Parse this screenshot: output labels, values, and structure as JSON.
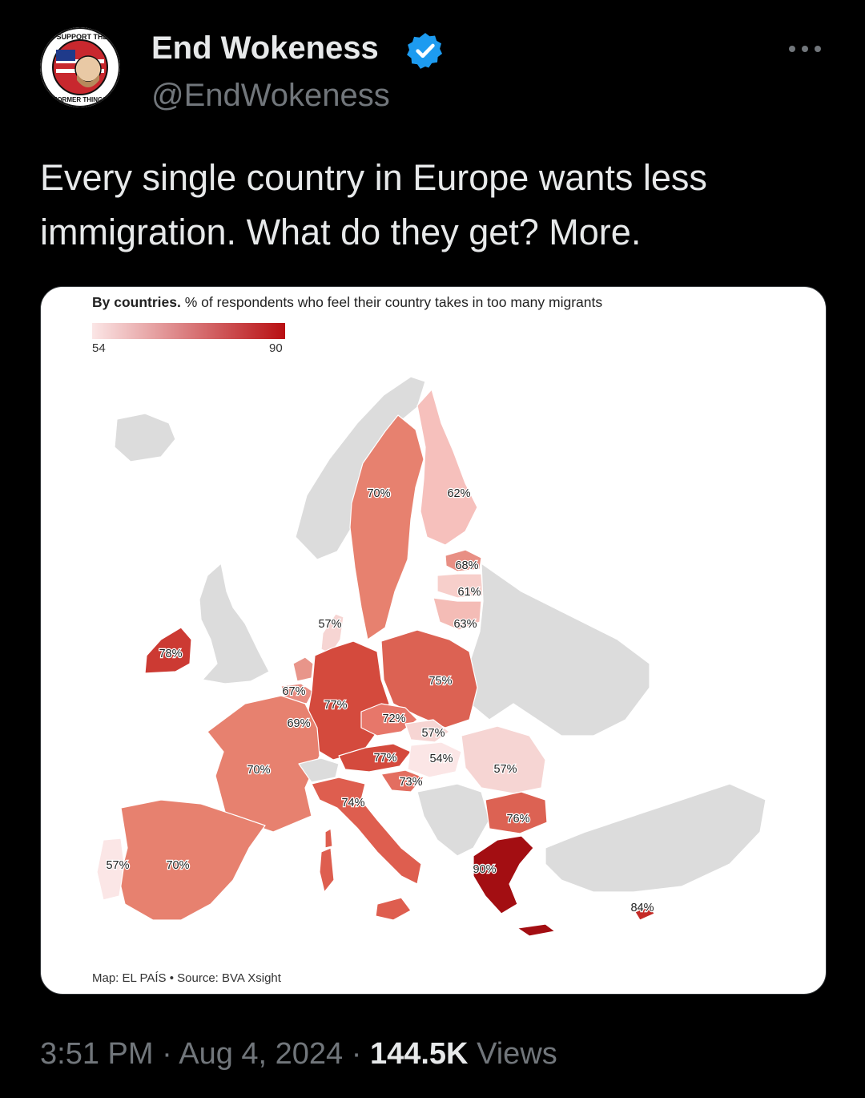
{
  "author": {
    "name": "End Wokeness",
    "handle": "@EndWokeness",
    "avatar_top_text": "I SUPPORT THE",
    "avatar_bottom_text": "FORMER THINGS",
    "verified_icon": "verified-badge-icon",
    "verified_color": "#1d9bf0"
  },
  "tweet": {
    "text": "Every single country in Europe wants less immigration. What do they get? More.",
    "time": "3:51 PM",
    "date": "Aug 4, 2024",
    "views_count": "144.5K",
    "views_label": "Views",
    "separator": "·"
  },
  "more_icon": "more-dots-icon",
  "map": {
    "title_bold": "By countries.",
    "title_rest": " % of respondents who feel their country takes in too many migrants",
    "legend_min": "54",
    "legend_max": "90",
    "credit": "Map: EL PAÍS • Source: BVA Xsight",
    "labels": {
      "sweden": "70%",
      "finland": "62%",
      "estonia": "68%",
      "latvia": "61%",
      "lithuania": "63%",
      "denmark": "57%",
      "ireland": "78%",
      "netherlands": "67%",
      "belgium": "69%",
      "germany": "77%",
      "poland": "75%",
      "czechia": "72%",
      "slovakia": "57%",
      "austria": "77%",
      "hungary": "54%",
      "romania": "57%",
      "slovenia": "73%",
      "france": "70%",
      "italy": "74%",
      "bulgaria": "76%",
      "portugal": "57%",
      "spain": "70%",
      "greece": "90%",
      "cyprus": "84%"
    }
  }
}
